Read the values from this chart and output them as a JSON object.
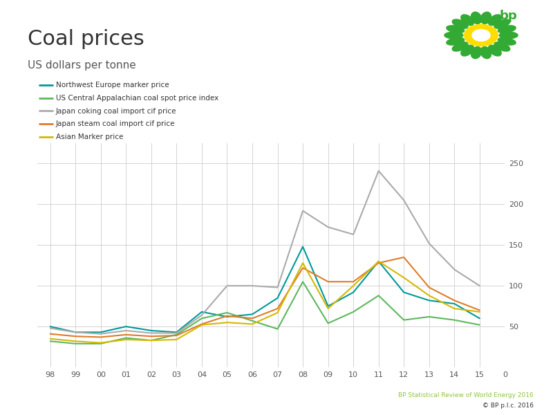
{
  "title": "Coal prices",
  "subtitle": "US dollars per tonne",
  "footer_line1": "BP Statistical Review of World Energy 2016",
  "footer_line2": "© BP p.l.c. 2016",
  "year_labels": [
    "98",
    "99",
    "00",
    "01",
    "02",
    "03",
    "04",
    "05",
    "06",
    "07",
    "08",
    "09",
    "10",
    "11",
    "12",
    "13",
    "14",
    "15",
    "0"
  ],
  "ylim": [
    0,
    275
  ],
  "yticks": [
    50,
    100,
    150,
    200,
    250
  ],
  "series": {
    "northwest_europe": {
      "label": "Northwest Europe marker price",
      "color": "#009999",
      "values": [
        50,
        43,
        43,
        50,
        45,
        43,
        68,
        62,
        65,
        85,
        148,
        75,
        92,
        130,
        92,
        82,
        78,
        60
      ]
    },
    "us_central": {
      "label": "US Central Appalachian coal spot price index",
      "color": "#5cb85c",
      "values": [
        32,
        29,
        29,
        36,
        33,
        40,
        60,
        67,
        57,
        47,
        105,
        54,
        68,
        88,
        58,
        62,
        58,
        52
      ]
    },
    "japan_coking": {
      "label": "Japan coking coal import cif price",
      "color": "#aaaaaa",
      "values": [
        48,
        43,
        41,
        45,
        42,
        42,
        64,
        100,
        100,
        98,
        192,
        172,
        163,
        241,
        205,
        152,
        120,
        100
      ]
    },
    "japan_steam": {
      "label": "Japan steam coal import cif price",
      "color": "#e07b29",
      "values": [
        41,
        38,
        37,
        40,
        38,
        39,
        53,
        63,
        60,
        72,
        122,
        105,
        105,
        128,
        135,
        98,
        82,
        70
      ]
    },
    "asian_marker": {
      "label": "Asian Marker price",
      "color": "#d4b800",
      "values": [
        35,
        32,
        30,
        34,
        33,
        34,
        52,
        55,
        53,
        67,
        128,
        72,
        100,
        130,
        110,
        88,
        72,
        68
      ]
    }
  },
  "background_color": "#ffffff",
  "grid_color": "#cccccc",
  "title_color": "#333333",
  "subtitle_color": "#555555",
  "green_line_color": "#8dc63f",
  "footer_color1": "#8dc63f",
  "footer_color2": "#333333",
  "series_order": [
    "northwest_europe",
    "us_central",
    "japan_coking",
    "japan_steam",
    "asian_marker"
  ]
}
